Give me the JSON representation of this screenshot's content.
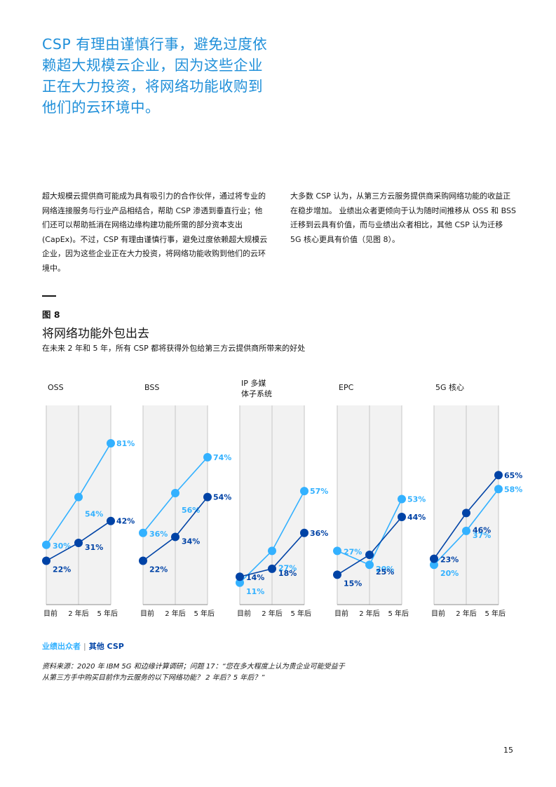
{
  "pull_quote": "CSP 有理由谨慎行事，避免过度依赖超大规模云企业，因为这些企业正在大力投资，将网络功能收购到他们的云环境中。",
  "body_left": "超大规模云提供商可能成为具有吸引力的合作伙伴，通过将专业的网络连接服务与行业产品相结合，帮助 CSP 渗透到垂直行业；他们还可以帮助抵消在网络边缘构建功能所需的部分资本支出 (CapEx)。不过，CSP 有理由谨慎行事，避免过度依赖超大规模云企业，因为这些企业正在大力投资，将网络功能收购到他们的云环境中。",
  "body_right": "大多数 CSP 认为，从第三方云服务提供商采购网络功能的收益正在稳步增加。 业绩出众者更倾向于认为随时间推移从 OSS 和 BSS 迁移到云具有价值，而与业绩出众者相比，其他 CSP 认为迁移 5G 核心更具有价值（见图 8）。",
  "figure": {
    "label": "图 8",
    "title": "将网络功能外包出去",
    "subtitle": "在未来 2 年和 5 年，所有 CSP 都将获得外包给第三方云提供商所带来的好处"
  },
  "legend": {
    "outperformers": "业绩出众者",
    "separator": "|",
    "others": "其他 CSP"
  },
  "source": "资料来源：2020 年 IBM 5G 和边缘计算调研；问题 17：“您在多大程度上认为贵企业可能受益于从第三方手中购买目前作为云服务的以下网络功能？ 2 年后？5 年后？”",
  "page_number": "15",
  "colors": {
    "outperformers": "#33b1ff",
    "others": "#0043a6",
    "panel_bg": "#f2f2f2",
    "grid": "#c6c6c6"
  },
  "chart_data": {
    "type": "line",
    "ylim": [
      0,
      100
    ],
    "x": [
      "目前",
      "2 年后",
      "5 年后"
    ],
    "series_names": [
      "业绩出众者",
      "其他 CSP"
    ],
    "panels": [
      {
        "title": "OSS",
        "series": [
          {
            "name": "业绩出众者",
            "values": [
              30,
              54,
              81
            ]
          },
          {
            "name": "其他 CSP",
            "values": [
              22,
              31,
              42
            ]
          }
        ]
      },
      {
        "title": "BSS",
        "series": [
          {
            "name": "业绩出众者",
            "values": [
              36,
              56,
              74
            ]
          },
          {
            "name": "其他 CSP",
            "values": [
              22,
              34,
              54
            ]
          }
        ]
      },
      {
        "title": "IP 多媒体子系统",
        "series": [
          {
            "name": "业绩出众者",
            "values": [
              11,
              27,
              57
            ]
          },
          {
            "name": "其他 CSP",
            "values": [
              14,
              18,
              36
            ]
          }
        ]
      },
      {
        "title": "EPC",
        "series": [
          {
            "name": "业绩出众者",
            "values": [
              27,
              20,
              53
            ]
          },
          {
            "name": "其他 CSP",
            "values": [
              15,
              25,
              44
            ]
          }
        ]
      },
      {
        "title": "5G 核心",
        "series": [
          {
            "name": "业绩出众者",
            "values": [
              20,
              37,
              58
            ]
          },
          {
            "name": "其他 CSP",
            "values": [
              23,
              46,
              65
            ]
          }
        ]
      }
    ]
  }
}
